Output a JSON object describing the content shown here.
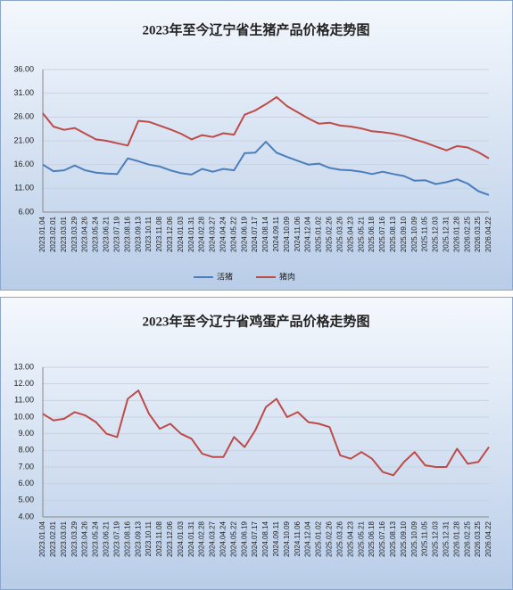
{
  "chart_data": [
    {
      "type": "line",
      "title": "2023年至今辽宁省生猪产品价格走势图",
      "categories": [
        "2023.01.04",
        "2023.02.01",
        "2023.03.01",
        "2023.03.29",
        "2023.04.26",
        "2023.05.24",
        "2023.06.21",
        "2023.07.19",
        "2023.08.16",
        "2023.09.13",
        "2023.10.11",
        "2023.11.08",
        "2023.12.06",
        "2024.01.03",
        "2024.01.31",
        "2024.02.28",
        "2024.03.27",
        "2024.04.24",
        "2024.05.22",
        "2024.06.19",
        "2024.07.17",
        "2024.08.14",
        "2024.09.11",
        "2024.10.09",
        "2024.11.06",
        "2024.12.04",
        "2025.01.02",
        "2025.02.26",
        "2025.03.26",
        "2025.04.23",
        "2025.05.21",
        "2025.06.18",
        "2025.07.16",
        "2025.08.13",
        "2025.09.10",
        "2025.10.09",
        "2025.11.05",
        "2025.12.03",
        "2025.12.31",
        "2026.01.28",
        "2026.02.25",
        "2026.03.25",
        "2026.04.22"
      ],
      "series": [
        {
          "name": "活猪",
          "color": "#4a7ebb",
          "values": [
            16.0,
            14.6,
            14.8,
            15.8,
            14.8,
            14.3,
            14.1,
            14.0,
            17.3,
            16.7,
            16.0,
            15.6,
            14.8,
            14.2,
            13.9,
            15.1,
            14.5,
            15.1,
            14.8,
            18.4,
            18.5,
            20.8,
            18.5,
            17.6,
            16.8,
            16.0,
            16.2,
            15.3,
            14.9,
            14.8,
            14.5,
            14.0,
            14.5,
            14.0,
            13.6,
            12.6,
            12.7,
            11.9,
            12.3,
            12.9,
            12.0,
            10.4,
            9.6
          ]
        },
        {
          "name": "猪肉",
          "color": "#be4b48",
          "values": [
            26.8,
            24.0,
            23.3,
            23.7,
            22.5,
            21.3,
            21.0,
            20.5,
            20.0,
            25.2,
            25.0,
            24.2,
            23.4,
            22.5,
            21.3,
            22.2,
            21.8,
            22.6,
            22.3,
            26.5,
            27.4,
            28.7,
            30.2,
            28.3,
            27.0,
            25.7,
            24.6,
            24.8,
            24.2,
            24.0,
            23.6,
            23.0,
            22.8,
            22.5,
            22.0,
            21.3,
            20.6,
            19.8,
            19.0,
            19.9,
            19.6,
            18.6,
            17.3
          ]
        }
      ],
      "ylim": [
        6,
        36
      ],
      "yticks": [
        {
          "value": 6,
          "label": "6.00"
        },
        {
          "value": 11,
          "label": "11.00"
        },
        {
          "value": 16,
          "label": "16.00"
        },
        {
          "value": 21,
          "label": "21.00"
        },
        {
          "value": 26,
          "label": "26.00"
        },
        {
          "value": 31,
          "label": "31.00"
        },
        {
          "value": 36,
          "label": "36.00"
        }
      ],
      "grid": true,
      "legend": "bottom"
    },
    {
      "type": "line",
      "title": "2023年至今辽宁省鸡蛋产品价格走势图",
      "categories": [
        "2023.01.04",
        "2023.02.01",
        "2023.03.01",
        "2023.03.29",
        "2023.04.26",
        "2023.05.24",
        "2023.06.21",
        "2023.07.19",
        "2023.08.16",
        "2023.09.13",
        "2023.10.11",
        "2023.11.08",
        "2023.12.06",
        "2024.01.03",
        "2024.01.31",
        "2024.02.28",
        "2024.03.27",
        "2024.04.24",
        "2024.05.22",
        "2024.06.19",
        "2024.07.17",
        "2024.08.14",
        "2024.09.11",
        "2024.10.09",
        "2024.11.06",
        "2024.12.04",
        "2025.01.02",
        "2025.02.26",
        "2025.03.26",
        "2025.04.23",
        "2025.05.21",
        "2025.06.18",
        "2025.07.16",
        "2025.08.13",
        "2025.09.10",
        "2025.10.09",
        "2025.11.05",
        "2025.12.03",
        "2025.12.31",
        "2026.01.28",
        "2026.02.25",
        "2026.03.25",
        "2026.04.22"
      ],
      "values": [
        10.2,
        9.8,
        9.9,
        10.3,
        10.1,
        9.7,
        9.0,
        8.8,
        11.1,
        11.6,
        10.2,
        9.3,
        9.6,
        9.0,
        8.7,
        7.8,
        7.6,
        7.6,
        8.8,
        8.2,
        9.2,
        10.6,
        11.1,
        10.0,
        10.3,
        9.7,
        9.6,
        9.4,
        7.7,
        7.5,
        7.9,
        7.5,
        6.7,
        6.5,
        7.3,
        7.9,
        7.1,
        7.0,
        7.0,
        8.1,
        7.2,
        7.3,
        8.2
      ],
      "color": "#be4b48",
      "ylim": [
        4,
        13
      ],
      "yticks": [
        {
          "value": 4,
          "label": "4.00"
        },
        {
          "value": 5,
          "label": "5.00"
        },
        {
          "value": 6,
          "label": "6.00"
        },
        {
          "value": 7,
          "label": "7.00"
        },
        {
          "value": 8,
          "label": "8.00"
        },
        {
          "value": 9,
          "label": "9.00"
        },
        {
          "value": 10,
          "label": "10.00"
        },
        {
          "value": 11,
          "label": "11.00"
        },
        {
          "value": 12,
          "label": "12.00"
        },
        {
          "value": 13,
          "label": "13.00"
        }
      ],
      "grid": true
    }
  ]
}
